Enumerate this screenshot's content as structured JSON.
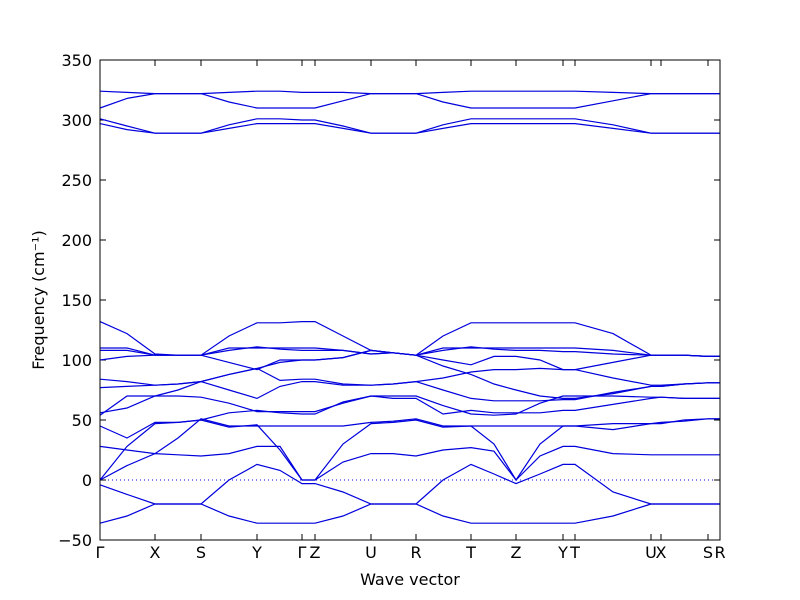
{
  "chart_data": {
    "type": "line",
    "xlabel": "Wave vector",
    "ylabel": "Frequency (cm⁻¹)",
    "color": "#0000dd",
    "x": [
      0,
      27,
      55,
      78,
      101,
      129,
      157,
      180,
      202,
      215,
      243,
      271,
      293,
      316,
      343,
      371,
      394,
      416,
      440,
      463,
      475,
      513,
      551,
      561,
      584,
      608,
      620
    ],
    "xlim": [
      0,
      620
    ],
    "xticks": [
      {
        "value": 0,
        "label": "Γ"
      },
      {
        "value": 55,
        "label": "X"
      },
      {
        "value": 101,
        "label": "S"
      },
      {
        "value": 157,
        "label": "Y"
      },
      {
        "value": 202,
        "label": "Γ"
      },
      {
        "value": 215,
        "label": "Z"
      },
      {
        "value": 271,
        "label": "U"
      },
      {
        "value": 316,
        "label": "R"
      },
      {
        "value": 371,
        "label": "T"
      },
      {
        "value": 416,
        "label": "Z"
      },
      {
        "value": 463,
        "label": "Y"
      },
      {
        "value": 475,
        "label": "T"
      },
      {
        "value": 551,
        "label": "U"
      },
      {
        "value": 561,
        "label": "X"
      },
      {
        "value": 608,
        "label": "S"
      },
      {
        "value": 620,
        "label": "R"
      }
    ],
    "ylim": [
      -50,
      350
    ],
    "yticks": [
      {
        "value": -50,
        "label": "−50"
      },
      0,
      50,
      100,
      150,
      200,
      250,
      300,
      350
    ],
    "grid": false,
    "series": [
      {
        "values": [
          -36,
          -30,
          -20,
          -20,
          -20,
          -30,
          -36,
          -36,
          -36,
          -36,
          -30,
          -20,
          -20,
          -20,
          -30,
          -36,
          -36,
          -36,
          -36,
          -36,
          -36,
          -30,
          -20,
          -20,
          -20,
          -20,
          -20
        ]
      },
      {
        "values": [
          -4,
          -12,
          -20,
          -20,
          -20,
          0,
          13,
          8,
          -3,
          -3,
          -10,
          -20,
          -20,
          -20,
          0,
          13,
          5,
          -3,
          5,
          13,
          13,
          -10,
          -20,
          -20,
          -20,
          -20,
          -20
        ]
      },
      {
        "values": [
          0,
          12,
          22,
          21,
          20,
          22,
          28,
          28,
          0,
          0,
          15,
          22,
          22,
          20,
          25,
          27,
          24,
          0,
          20,
          28,
          28,
          22,
          21,
          21,
          21,
          21,
          21
        ]
      },
      {
        "values": [
          0,
          28,
          47,
          48,
          50,
          44,
          46,
          25,
          0,
          0,
          30,
          47,
          48,
          50,
          44,
          45,
          30,
          0,
          30,
          45,
          45,
          47,
          47,
          47,
          50,
          51,
          51
        ]
      },
      {
        "values": [
          28,
          25,
          22,
          35,
          51,
          45,
          45,
          45,
          45,
          45,
          45,
          48,
          49,
          51,
          45,
          45,
          45,
          45,
          45,
          45,
          45,
          42,
          47,
          48,
          49,
          51,
          51
        ]
      },
      {
        "values": [
          45,
          35,
          48,
          48,
          50,
          56,
          58,
          56,
          55,
          55,
          65,
          70,
          68,
          68,
          55,
          58,
          56,
          56,
          56,
          58,
          58,
          63,
          68,
          69,
          68,
          68,
          68
        ]
      },
      {
        "values": [
          54,
          70,
          70,
          70,
          69,
          64,
          57,
          57,
          57,
          57,
          64,
          70,
          70,
          70,
          62,
          55,
          54,
          55,
          64,
          70,
          70,
          70,
          69,
          69,
          68,
          68,
          68
        ]
      },
      {
        "values": [
          56,
          60,
          70,
          75,
          82,
          75,
          68,
          78,
          82,
          82,
          79,
          79,
          80,
          82,
          75,
          68,
          66,
          66,
          66,
          67,
          67,
          73,
          78,
          78,
          80,
          81,
          81
        ]
      },
      {
        "values": [
          77,
          78,
          79,
          80,
          82,
          88,
          93,
          83,
          84,
          84,
          80,
          79,
          80,
          82,
          85,
          90,
          92,
          92,
          93,
          92,
          92,
          85,
          79,
          79,
          80,
          81,
          81
        ]
      },
      {
        "values": [
          84,
          82,
          79,
          80,
          82,
          88,
          93,
          98,
          100,
          100,
          102,
          108,
          106,
          104,
          95,
          88,
          80,
          75,
          70,
          68,
          68,
          72,
          78,
          78,
          80,
          81,
          81
        ]
      },
      {
        "values": [
          100,
          103,
          104,
          104,
          104,
          98,
          92,
          100,
          100,
          100,
          102,
          108,
          106,
          104,
          100,
          96,
          103,
          103,
          100,
          92,
          92,
          98,
          104,
          104,
          104,
          103,
          103
        ]
      },
      {
        "values": [
          108,
          108,
          104,
          104,
          104,
          108,
          111,
          109,
          108,
          108,
          108,
          105,
          106,
          104,
          108,
          111,
          109,
          108,
          108,
          107,
          107,
          105,
          104,
          104,
          104,
          103,
          103
        ]
      },
      {
        "values": [
          110,
          110,
          104,
          104,
          104,
          110,
          110,
          110,
          110,
          110,
          108,
          105,
          106,
          104,
          110,
          110,
          110,
          110,
          110,
          110,
          110,
          108,
          104,
          104,
          104,
          103,
          103
        ]
      },
      {
        "values": [
          132,
          122,
          105,
          104,
          104,
          120,
          131,
          131,
          132,
          132,
          120,
          108,
          106,
          104,
          120,
          131,
          131,
          131,
          131,
          131,
          131,
          122,
          104,
          104,
          104,
          103,
          103
        ]
      },
      {
        "values": [
          324,
          323,
          322,
          322,
          322,
          323,
          324,
          324,
          323,
          323,
          323,
          322,
          322,
          322,
          323,
          324,
          324,
          324,
          324,
          324,
          324,
          323,
          322,
          322,
          322,
          322,
          322
        ]
      },
      {
        "values": [
          310,
          318,
          322,
          322,
          322,
          315,
          310,
          310,
          310,
          310,
          316,
          322,
          322,
          322,
          315,
          310,
          310,
          310,
          310,
          310,
          310,
          316,
          322,
          322,
          322,
          322,
          322
        ]
      },
      {
        "values": [
          301,
          295,
          289,
          289,
          289,
          296,
          301,
          301,
          300,
          300,
          295,
          289,
          289,
          289,
          296,
          301,
          301,
          301,
          301,
          301,
          301,
          296,
          289,
          289,
          289,
          289,
          289
        ]
      },
      {
        "values": [
          297,
          292,
          289,
          289,
          289,
          293,
          297,
          297,
          297,
          297,
          293,
          289,
          289,
          289,
          293,
          297,
          297,
          297,
          297,
          297,
          297,
          293,
          289,
          289,
          289,
          289,
          289
        ]
      }
    ]
  }
}
